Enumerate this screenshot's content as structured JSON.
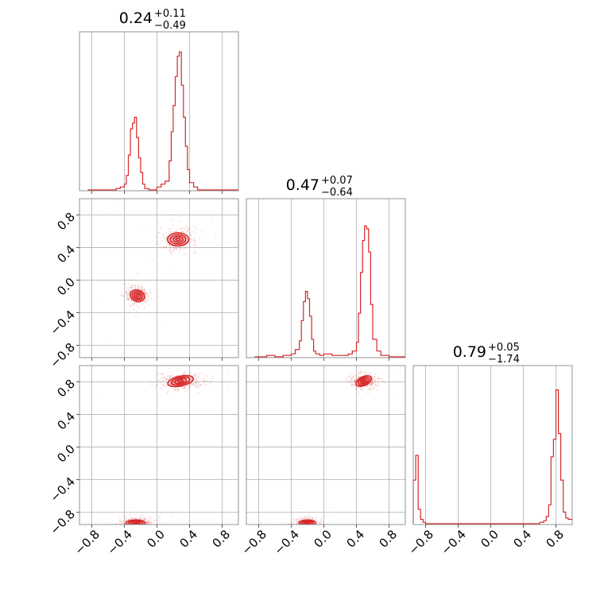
{
  "chart_data": {
    "type": "corner",
    "parameters": 3,
    "series_color": "#d62728",
    "grid": true,
    "axis_range": [
      -0.95,
      1.0
    ],
    "ticks": [
      -0.8,
      -0.4,
      0.0,
      0.4,
      0.8
    ],
    "tick_labels": [
      "−0.8",
      "−0.4",
      "0.0",
      "0.4",
      "0.8"
    ],
    "titles": [
      {
        "median": "0.24",
        "plus": "+0.11",
        "minus": "−0.49"
      },
      {
        "median": "0.47",
        "plus": "+0.07",
        "minus": "−0.64"
      },
      {
        "median": "0.79",
        "plus": "+0.05",
        "minus": "−1.74"
      }
    ],
    "histograms": [
      {
        "x": [
          -0.85,
          -0.8,
          -0.75,
          -0.7,
          -0.65,
          -0.6,
          -0.55,
          -0.5,
          -0.45,
          -0.4,
          -0.375,
          -0.35,
          -0.325,
          -0.3,
          -0.275,
          -0.25,
          -0.225,
          -0.2,
          -0.175,
          -0.15,
          -0.1,
          -0.05,
          0.0,
          0.05,
          0.1,
          0.15,
          0.175,
          0.2,
          0.225,
          0.25,
          0.275,
          0.3,
          0.325,
          0.35,
          0.375,
          0.4,
          0.45,
          0.5,
          0.6,
          0.7,
          0.8
        ],
        "y": [
          0,
          0,
          0,
          0,
          0,
          0,
          0,
          0.01,
          0.02,
          0.04,
          0.1,
          0.24,
          0.42,
          0.46,
          0.5,
          0.36,
          0.22,
          0.12,
          0.04,
          0.01,
          0,
          0,
          0.02,
          0.04,
          0.06,
          0.2,
          0.4,
          0.58,
          0.78,
          0.92,
          0.95,
          0.72,
          0.5,
          0.3,
          0.14,
          0.05,
          0.02,
          0,
          0,
          0,
          0
        ]
      },
      {
        "x": [
          -0.85,
          -0.8,
          -0.7,
          -0.6,
          -0.5,
          -0.4,
          -0.35,
          -0.3,
          -0.275,
          -0.25,
          -0.225,
          -0.2,
          -0.175,
          -0.15,
          -0.125,
          -0.1,
          -0.05,
          0.0,
          0.1,
          0.2,
          0.3,
          0.35,
          0.4,
          0.425,
          0.45,
          0.475,
          0.5,
          0.525,
          0.55,
          0.575,
          0.6,
          0.65,
          0.7,
          0.8
        ],
        "y": [
          0,
          0,
          0.01,
          0,
          0.01,
          0.02,
          0.05,
          0.11,
          0.25,
          0.38,
          0.45,
          0.4,
          0.28,
          0.12,
          0.04,
          0.02,
          0.01,
          0.02,
          0.01,
          0.01,
          0.02,
          0.04,
          0.1,
          0.3,
          0.58,
          0.8,
          0.9,
          0.88,
          0.72,
          0.36,
          0.12,
          0.04,
          0.01,
          0
        ]
      },
      {
        "x": [
          -0.95,
          -0.92,
          -0.89,
          -0.86,
          -0.83,
          -0.8,
          -0.7,
          -0.5,
          -0.3,
          -0.1,
          0.1,
          0.3,
          0.5,
          0.6,
          0.65,
          0.68,
          0.71,
          0.74,
          0.77,
          0.8,
          0.83,
          0.86,
          0.89,
          0.92,
          0.95
        ],
        "y": [
          0.3,
          0.47,
          0.1,
          0.03,
          0.01,
          0,
          0,
          0,
          0,
          0,
          0,
          0,
          0,
          0.01,
          0.02,
          0.05,
          0.13,
          0.46,
          0.58,
          0.92,
          0.62,
          0.3,
          0.08,
          0.04,
          0.03
        ]
      }
    ],
    "contours": [
      {
        "row": 1,
        "col": 0,
        "blobs": [
          {
            "cx": 0.26,
            "cy": 0.5,
            "rx": 0.13,
            "ry": 0.08,
            "rot": 0
          },
          {
            "cx": -0.24,
            "cy": -0.19,
            "rx": 0.09,
            "ry": 0.07,
            "rot": -20
          }
        ]
      },
      {
        "row": 2,
        "col": 0,
        "blobs": [
          {
            "cx": 0.29,
            "cy": 0.81,
            "rx": 0.16,
            "ry": 0.06,
            "rot": 12
          },
          {
            "cx": -0.26,
            "cy": -0.93,
            "rx": 0.12,
            "ry": 0.035,
            "rot": 0
          }
        ]
      },
      {
        "row": 2,
        "col": 1,
        "blobs": [
          {
            "cx": 0.49,
            "cy": 0.81,
            "rx": 0.1,
            "ry": 0.055,
            "rot": 25
          },
          {
            "cx": -0.2,
            "cy": -0.93,
            "rx": 0.1,
            "ry": 0.035,
            "rot": 0
          }
        ]
      }
    ]
  }
}
